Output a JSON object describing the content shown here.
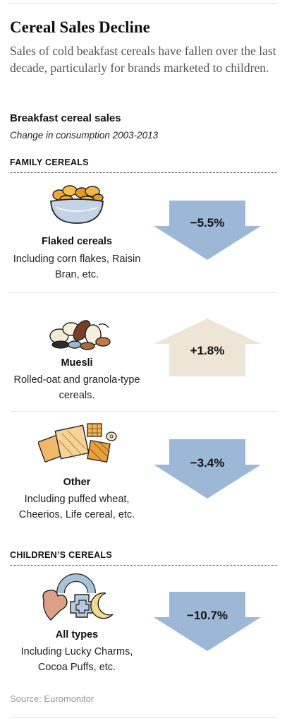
{
  "header": {
    "title": "Cereal Sales Decline",
    "subtitle": "Sales of cold beakfast cereals have fallen over the last decade, particularly for brands marketed to children."
  },
  "chart_data": {
    "type": "bar",
    "title": "Breakfast cereal sales",
    "subtitle": "Change in consumption 2003-2013",
    "unit": "%",
    "colors": {
      "decline": "#9db7d6",
      "increase": "#ede6d6"
    },
    "sections": [
      {
        "heading": "FAMILY CEREALS",
        "items": [
          {
            "name": "Flaked cereals",
            "description": "Including corn flakes, Raisin Bran, etc.",
            "value": -5.5,
            "label": "−5.5%",
            "icon": "cereal-bowl-icon"
          },
          {
            "name": "Muesli",
            "description": "Rolled-oat and granola-type cereals.",
            "value": 1.8,
            "label": "+1.8%",
            "icon": "muesli-icon"
          },
          {
            "name": "Other",
            "description": "Including puffed wheat, Cheerios, Life cereal, etc.",
            "value": -3.4,
            "label": "−3.4%",
            "icon": "puffed-cereal-icon"
          }
        ]
      },
      {
        "heading": "CHILDREN’S CEREALS",
        "items": [
          {
            "name": "All types",
            "description": "Including Lucky Charms, Cocoa Puffs, etc.",
            "value": -10.7,
            "label": "−10.7%",
            "icon": "marshmallow-shapes-icon"
          }
        ]
      }
    ]
  },
  "source": "Source: Euromonitor"
}
